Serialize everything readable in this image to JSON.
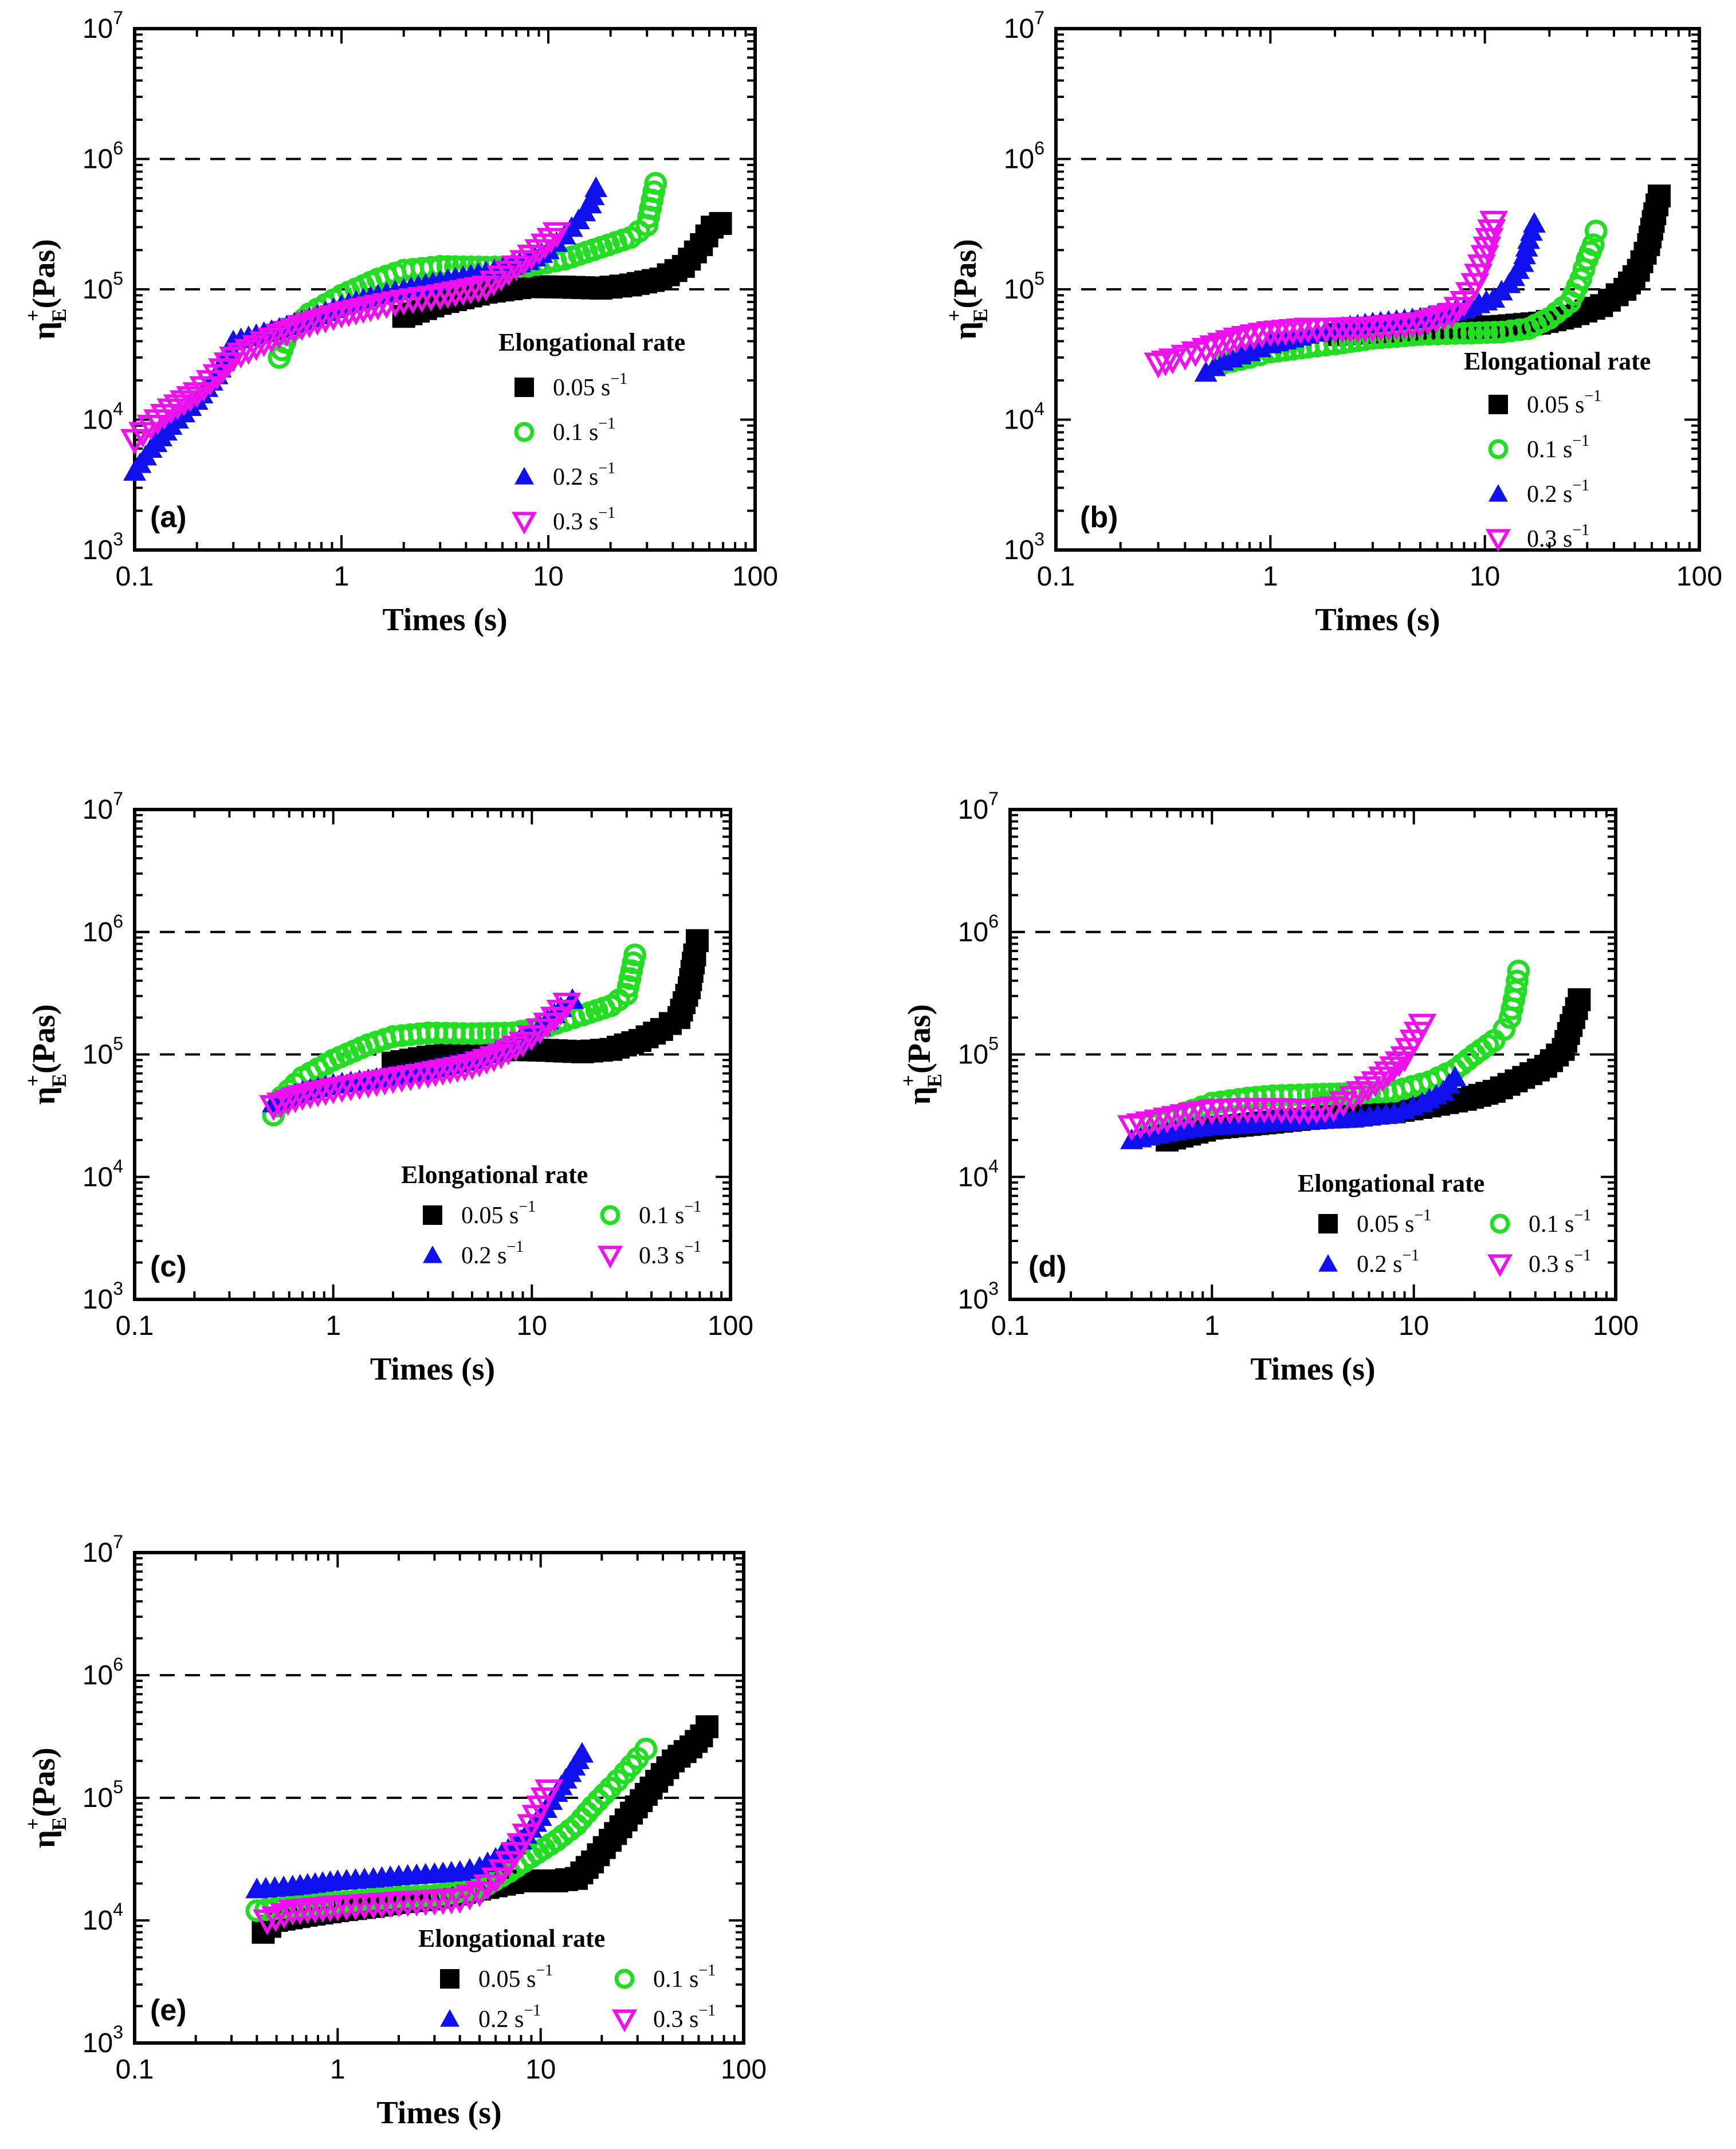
{
  "figure": {
    "x_label": "Times (s)",
    "y_label_main": "η",
    "y_label_sup": "+",
    "y_label_sub": "E",
    "y_label_tail": "(Pas)",
    "x_ticks": [
      "0.1",
      "1",
      "10",
      "100"
    ],
    "y_tick_base": "10",
    "y_tick_exponents": [
      "3",
      "4",
      "5",
      "6",
      "7"
    ],
    "legend_title": "Elongational rate",
    "legend_unit": " s",
    "legend_unit_sup": "−1",
    "colors": {
      "0.05": "#000000",
      "0.1": "#22dd22",
      "0.2": "#1010ee",
      "0.3": "#ee10ee"
    }
  },
  "chart_data": [
    {
      "panel": "(a)",
      "type": "scatter",
      "xscale": "log",
      "yscale": "log",
      "xlim": [
        0.1,
        100
      ],
      "ylim": [
        1000,
        10000000
      ],
      "reference_lines_y": [
        100000,
        1000000
      ],
      "xlabel": "Times (s)",
      "ylabel": "η+E(Pas)",
      "legend_title": "Elongational rate",
      "series": [
        {
          "name": "0.05",
          "marker": "square",
          "x": [
            2,
            3,
            5,
            8,
            12,
            18,
            25,
            35,
            45,
            55,
            62,
            68
          ],
          "y": [
            62000,
            78000,
            95000,
            105000,
            104000,
            102000,
            108000,
            120000,
            150000,
            220000,
            300000,
            320000
          ]
        },
        {
          "name": "0.1",
          "marker": "circle",
          "x": [
            0.5,
            0.55,
            0.7,
            1,
            1.5,
            2,
            3,
            5,
            8,
            12,
            18,
            25,
            30,
            33
          ],
          "y": [
            30000,
            45000,
            65000,
            90000,
            120000,
            140000,
            150000,
            148000,
            150000,
            170000,
            210000,
            250000,
            310000,
            650000
          ]
        },
        {
          "name": "0.2",
          "marker": "triangle",
          "x": [
            0.1,
            0.12,
            0.15,
            0.2,
            0.25,
            0.3,
            0.5,
            0.7,
            1,
            1.5,
            2,
            3,
            5,
            8,
            10,
            12,
            14,
            16,
            17
          ],
          "y": [
            4000,
            6000,
            9000,
            14000,
            22000,
            40000,
            50000,
            60000,
            75000,
            90000,
            100000,
            115000,
            135000,
            165000,
            200000,
            260000,
            340000,
            450000,
            600000
          ]
        },
        {
          "name": "0.3",
          "marker": "triangle-down",
          "x": [
            0.1,
            0.12,
            0.15,
            0.2,
            0.25,
            0.3,
            0.5,
            0.7,
            1,
            1.5,
            2,
            3,
            5,
            7,
            9,
            11
          ],
          "y": [
            7000,
            9000,
            12000,
            16000,
            22000,
            30000,
            45000,
            55000,
            65000,
            75000,
            82000,
            90000,
            105000,
            150000,
            200000,
            270000
          ]
        }
      ]
    },
    {
      "panel": "(b)",
      "type": "scatter",
      "xscale": "log",
      "yscale": "log",
      "xlim": [
        0.1,
        100
      ],
      "ylim": [
        1000,
        10000000
      ],
      "reference_lines_y": [
        100000,
        1000000
      ],
      "xlabel": "Times (s)",
      "ylabel": "η+E(Pas)",
      "legend_title": "Elongational rate",
      "series": [
        {
          "name": "0.05",
          "marker": "square",
          "x": [
            2,
            3,
            5,
            8,
            12,
            18,
            25,
            35,
            45,
            52,
            58,
            62,
            65
          ],
          "y": [
            45000,
            47000,
            48000,
            50000,
            52000,
            55000,
            62000,
            75000,
            100000,
            140000,
            220000,
            380000,
            520000
          ]
        },
        {
          "name": "0.1",
          "marker": "circle",
          "x": [
            0.6,
            0.8,
            1,
            1.5,
            2,
            3,
            5,
            8,
            12,
            16,
            20,
            25,
            28,
            30,
            32,
            33
          ],
          "y": [
            27000,
            30000,
            33000,
            36000,
            38000,
            42000,
            45000,
            46000,
            47000,
            50000,
            60000,
            80000,
            120000,
            170000,
            220000,
            280000
          ]
        },
        {
          "name": "0.2",
          "marker": "triangle",
          "x": [
            0.5,
            0.6,
            0.8,
            1,
            1.5,
            2,
            3,
            5,
            8,
            11,
            13,
            15,
            16,
            17
          ],
          "y": [
            23000,
            28000,
            33000,
            38000,
            45000,
            50000,
            55000,
            60000,
            70000,
            85000,
            110000,
            160000,
            240000,
            320000
          ]
        },
        {
          "name": "0.3",
          "marker": "triangle-down",
          "x": [
            0.3,
            0.35,
            0.4,
            0.5,
            0.7,
            1,
            1.5,
            2,
            3,
            5,
            7,
            8,
            9,
            10,
            11
          ],
          "y": [
            27000,
            29000,
            31000,
            35000,
            42000,
            47000,
            50000,
            50000,
            51000,
            55000,
            65000,
            80000,
            110000,
            180000,
            330000
          ]
        }
      ]
    },
    {
      "panel": "(c)",
      "type": "scatter",
      "xscale": "log",
      "yscale": "log",
      "xlim": [
        0.1,
        100
      ],
      "ylim": [
        1000,
        10000000
      ],
      "reference_lines_y": [
        100000,
        1000000
      ],
      "xlabel": "Times (s)",
      "ylabel": "η+E(Pas)",
      "legend_title": "Elongational rate",
      "series": [
        {
          "name": "0.05",
          "marker": "square",
          "x": [
            2,
            3,
            5,
            8,
            12,
            18,
            25,
            35,
            45,
            55,
            62,
            66,
            68
          ],
          "y": [
            85000,
            95000,
            105000,
            110000,
            108000,
            105000,
            110000,
            130000,
            160000,
            200000,
            350000,
            650000,
            850000
          ]
        },
        {
          "name": "0.1",
          "marker": "circle",
          "x": [
            0.5,
            0.55,
            0.7,
            1,
            1.5,
            2,
            3,
            5,
            8,
            12,
            18,
            25,
            30,
            33
          ],
          "y": [
            32000,
            45000,
            65000,
            90000,
            120000,
            140000,
            150000,
            148000,
            150000,
            170000,
            210000,
            250000,
            310000,
            650000
          ]
        },
        {
          "name": "0.2",
          "marker": "triangle",
          "x": [
            0.5,
            0.7,
            1,
            1.5,
            2,
            3,
            5,
            8,
            10,
            12,
            14,
            16
          ],
          "y": [
            40000,
            50000,
            57000,
            62000,
            67000,
            75000,
            90000,
            120000,
            150000,
            190000,
            240000,
            280000
          ]
        },
        {
          "name": "0.3",
          "marker": "triangle-down",
          "x": [
            0.5,
            0.7,
            1,
            1.5,
            2,
            3,
            5,
            7,
            9,
            11,
            13,
            15
          ],
          "y": [
            38000,
            46000,
            52000,
            58000,
            63000,
            70000,
            82000,
            100000,
            125000,
            160000,
            200000,
            260000
          ]
        }
      ]
    },
    {
      "panel": "(d)",
      "type": "scatter",
      "xscale": "log",
      "yscale": "log",
      "xlim": [
        0.1,
        100
      ],
      "ylim": [
        1000,
        10000000
      ],
      "reference_lines_y": [
        100000,
        1000000
      ],
      "xlabel": "Times (s)",
      "ylabel": "η+E(Pas)",
      "legend_title": "Elongational rate",
      "series": [
        {
          "name": "0.05",
          "marker": "square",
          "x": [
            0.6,
            1,
            2,
            3,
            5,
            8,
            12,
            18,
            25,
            35,
            45,
            55,
            62,
            66
          ],
          "y": [
            20000,
            25000,
            28000,
            30000,
            32000,
            34000,
            38000,
            43000,
            50000,
            65000,
            80000,
            110000,
            200000,
            280000
          ]
        },
        {
          "name": "0.1",
          "marker": "circle",
          "x": [
            0.5,
            0.8,
            1,
            1.5,
            2,
            3,
            5,
            8,
            12,
            16,
            20,
            25,
            28,
            30,
            32,
            33
          ],
          "y": [
            27000,
            35000,
            40000,
            44000,
            46000,
            47000,
            48000,
            50000,
            60000,
            75000,
            100000,
            130000,
            160000,
            200000,
            330000,
            480000
          ]
        },
        {
          "name": "0.2",
          "marker": "triangle",
          "x": [
            0.4,
            0.6,
            0.8,
            1,
            1.5,
            2,
            3,
            5,
            8,
            11,
            14,
            16
          ],
          "y": [
            20000,
            23000,
            25000,
            26000,
            27000,
            28000,
            29000,
            30000,
            33000,
            40000,
            50000,
            65000
          ]
        },
        {
          "name": "0.3",
          "marker": "triangle-down",
          "x": [
            0.4,
            0.6,
            0.8,
            1,
            1.5,
            2,
            3,
            4,
            5,
            7,
            9,
            10,
            11
          ],
          "y": [
            26000,
            30000,
            33000,
            35000,
            36000,
            36000,
            35000,
            37000,
            45000,
            65000,
            95000,
            130000,
            175000
          ]
        }
      ]
    },
    {
      "panel": "(e)",
      "type": "scatter",
      "xscale": "log",
      "yscale": "log",
      "xlim": [
        0.1,
        100
      ],
      "ylim": [
        1000,
        10000000
      ],
      "reference_lines_y": [
        100000,
        1000000
      ],
      "xlabel": "Times (s)",
      "ylabel": "η+E(Pas)",
      "legend_title": "Elongational rate",
      "series": [
        {
          "name": "0.05",
          "marker": "square",
          "x": [
            0.43,
            0.5,
            0.7,
            1,
            1.5,
            2,
            3,
            5,
            8,
            12,
            15,
            18,
            22,
            28,
            35,
            45,
            55,
            62,
            66
          ],
          "y": [
            8000,
            10000,
            11000,
            12000,
            13000,
            14000,
            15000,
            18000,
            21000,
            21000,
            22000,
            30000,
            45000,
            75000,
            120000,
            200000,
            260000,
            320000,
            380000
          ]
        },
        {
          "name": "0.1",
          "marker": "circle",
          "x": [
            0.4,
            0.6,
            1,
            1.5,
            2,
            3,
            5,
            7,
            9,
            12,
            15,
            18,
            22,
            26,
            30,
            33
          ],
          "y": [
            12000,
            13000,
            14000,
            15000,
            15500,
            16000,
            18000,
            25000,
            33000,
            45000,
            60000,
            85000,
            120000,
            160000,
            210000,
            250000
          ]
        },
        {
          "name": "0.2",
          "marker": "triangle",
          "x": [
            0.4,
            0.6,
            1,
            1.5,
            2,
            3,
            4,
            5,
            6,
            8,
            10,
            12,
            14,
            16
          ],
          "y": [
            18000,
            19000,
            21000,
            22000,
            23000,
            24000,
            25000,
            27000,
            32000,
            45000,
            70000,
            110000,
            160000,
            230000
          ]
        },
        {
          "name": "0.3",
          "marker": "triangle-down",
          "x": [
            0.45,
            0.6,
            1,
            1.5,
            2,
            3,
            4,
            5,
            6,
            7,
            8,
            9,
            10,
            11
          ],
          "y": [
            10000,
            12000,
            13000,
            13500,
            14000,
            14500,
            15000,
            17000,
            22000,
            30000,
            42000,
            60000,
            85000,
            115000
          ]
        }
      ]
    }
  ]
}
